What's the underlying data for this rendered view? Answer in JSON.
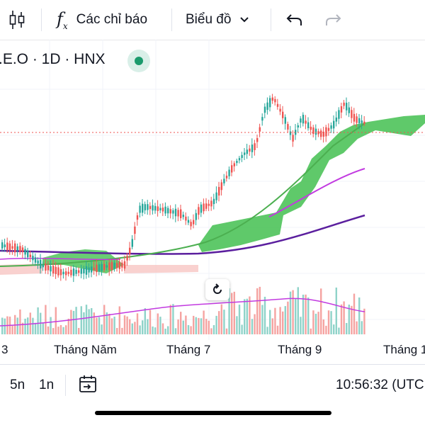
{
  "toolbar": {
    "indicators_label": "Các chỉ báo",
    "chart_type_label": "Biểu đồ"
  },
  "symbol": {
    "text": ".E.O · 1D · HNX"
  },
  "xaxis": {
    "labels": [
      "3",
      "Tháng Năm",
      "Tháng 7",
      "Tháng 9",
      "Tháng 1"
    ]
  },
  "bottom": {
    "range_5n": "5n",
    "range_1n": "1n",
    "time": "10:56:32 (UTC"
  },
  "colors": {
    "up": "#26a69a",
    "down": "#ef5350",
    "cloud": "#43c050",
    "ma_green": "#4caf50",
    "ma_magenta": "#c23ae0",
    "ma_purple": "#5b1f9e"
  },
  "chart_data": {
    "type": "candlestick",
    "note_axes": "price axis not visible",
    "xticks": [
      "3",
      "Tháng Năm",
      "Tháng 7",
      "Tháng 9",
      "Tháng 1"
    ]
  }
}
